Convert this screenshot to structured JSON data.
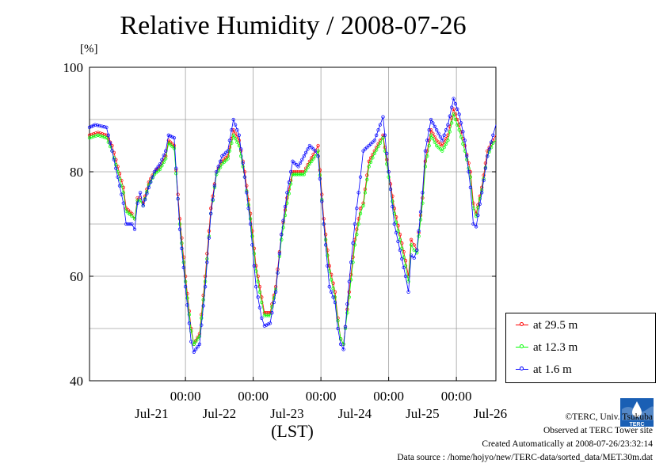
{
  "chart_data": {
    "type": "line",
    "title": "Relative Humidity / 2008-07-26",
    "ylabel": "[%]",
    "xlabel": "(LST)",
    "ylim": [
      40,
      100
    ],
    "yticks": [
      40,
      60,
      80,
      100
    ],
    "x_tick_time_labels": [
      "00:00",
      "00:00",
      "00:00",
      "00:00",
      "00:00"
    ],
    "x_tick_date_labels": [
      "Jul-21",
      "Jul-22",
      "Jul-23",
      "Jul-24",
      "Jul-25",
      "Jul-26"
    ],
    "grid": true,
    "legend_position": "outside-right-bottom",
    "time_unit": "hours",
    "x_range_hours": [
      0,
      144
    ],
    "series": [
      {
        "name": "at 29.5 m",
        "color": "#ff0000",
        "points": [
          [
            0,
            87
          ],
          [
            3,
            87.5
          ],
          [
            6,
            87
          ],
          [
            8,
            85
          ],
          [
            10,
            81
          ],
          [
            12,
            77
          ],
          [
            13,
            73
          ],
          [
            15,
            72
          ],
          [
            16,
            71
          ],
          [
            17,
            75
          ],
          [
            18,
            75
          ],
          [
            19,
            74
          ],
          [
            21,
            78
          ],
          [
            23,
            80
          ],
          [
            25,
            81
          ],
          [
            27,
            83
          ],
          [
            28,
            86
          ],
          [
            30,
            85
          ],
          [
            32,
            71
          ],
          [
            34,
            60
          ],
          [
            36,
            50
          ],
          [
            37,
            47
          ],
          [
            39,
            49
          ],
          [
            41,
            60
          ],
          [
            43,
            73
          ],
          [
            45,
            80
          ],
          [
            47,
            82
          ],
          [
            49,
            83
          ],
          [
            51,
            88
          ],
          [
            53,
            86
          ],
          [
            55,
            80
          ],
          [
            57,
            72
          ],
          [
            59,
            62
          ],
          [
            61,
            56
          ],
          [
            62,
            53
          ],
          [
            64,
            53
          ],
          [
            66,
            58
          ],
          [
            68,
            68
          ],
          [
            70,
            75
          ],
          [
            72,
            80
          ],
          [
            74,
            80
          ],
          [
            76,
            80
          ],
          [
            78,
            82
          ],
          [
            80,
            84
          ],
          [
            81,
            85
          ],
          [
            83,
            71
          ],
          [
            85,
            62
          ],
          [
            87,
            57
          ],
          [
            88,
            52
          ],
          [
            89,
            48
          ],
          [
            90,
            47
          ],
          [
            92,
            57
          ],
          [
            94,
            67
          ],
          [
            96,
            73
          ],
          [
            97,
            74
          ],
          [
            99,
            82
          ],
          [
            101,
            84
          ],
          [
            103,
            86
          ],
          [
            104,
            87
          ],
          [
            106,
            80
          ],
          [
            108,
            73
          ],
          [
            110,
            68
          ],
          [
            112,
            63
          ],
          [
            113,
            60
          ],
          [
            114,
            67
          ],
          [
            115,
            66
          ],
          [
            116,
            65
          ],
          [
            118,
            75
          ],
          [
            119,
            82
          ],
          [
            121,
            88
          ],
          [
            123,
            86
          ],
          [
            125,
            85
          ],
          [
            127,
            87
          ],
          [
            129,
            92
          ],
          [
            131,
            89
          ],
          [
            133,
            85
          ],
          [
            135,
            80
          ],
          [
            136,
            74
          ],
          [
            137,
            72
          ],
          [
            139,
            77
          ],
          [
            141,
            84
          ],
          [
            143,
            86
          ],
          [
            144,
            87
          ]
        ]
      },
      {
        "name": "at 12.3 m",
        "color": "#00ff00",
        "points": [
          [
            0,
            86.5
          ],
          [
            3,
            87
          ],
          [
            6,
            86.5
          ],
          [
            8,
            84
          ],
          [
            10,
            80
          ],
          [
            12,
            76
          ],
          [
            13,
            72.5
          ],
          [
            15,
            71.5
          ],
          [
            16,
            71
          ],
          [
            17,
            74.5
          ],
          [
            18,
            74.5
          ],
          [
            19,
            73.5
          ],
          [
            21,
            77.5
          ],
          [
            23,
            79.5
          ],
          [
            25,
            80.5
          ],
          [
            27,
            82.5
          ],
          [
            28,
            85.5
          ],
          [
            30,
            84.5
          ],
          [
            32,
            70
          ],
          [
            34,
            59
          ],
          [
            36,
            49.5
          ],
          [
            37,
            47
          ],
          [
            39,
            48.5
          ],
          [
            41,
            59
          ],
          [
            43,
            72
          ],
          [
            45,
            79.5
          ],
          [
            47,
            81.5
          ],
          [
            49,
            82.5
          ],
          [
            51,
            87
          ],
          [
            53,
            85
          ],
          [
            55,
            79
          ],
          [
            57,
            71
          ],
          [
            59,
            61
          ],
          [
            61,
            55
          ],
          [
            62,
            52.5
          ],
          [
            64,
            52.5
          ],
          [
            66,
            57.5
          ],
          [
            68,
            67
          ],
          [
            70,
            74
          ],
          [
            72,
            79.5
          ],
          [
            74,
            79.5
          ],
          [
            76,
            79.5
          ],
          [
            78,
            81.5
          ],
          [
            80,
            83
          ],
          [
            81,
            84
          ],
          [
            83,
            70
          ],
          [
            85,
            61
          ],
          [
            87,
            56
          ],
          [
            88,
            51.5
          ],
          [
            89,
            48
          ],
          [
            90,
            47
          ],
          [
            92,
            56
          ],
          [
            94,
            66
          ],
          [
            96,
            72
          ],
          [
            97,
            73.5
          ],
          [
            99,
            81
          ],
          [
            101,
            83.5
          ],
          [
            103,
            85.5
          ],
          [
            104,
            86.5
          ],
          [
            106,
            79
          ],
          [
            108,
            72
          ],
          [
            110,
            67
          ],
          [
            112,
            62
          ],
          [
            113,
            59
          ],
          [
            114,
            66
          ],
          [
            115,
            65
          ],
          [
            116,
            64.5
          ],
          [
            118,
            74
          ],
          [
            119,
            81
          ],
          [
            121,
            87
          ],
          [
            123,
            85
          ],
          [
            125,
            84
          ],
          [
            127,
            86
          ],
          [
            129,
            91
          ],
          [
            131,
            88
          ],
          [
            133,
            84
          ],
          [
            135,
            79
          ],
          [
            136,
            73
          ],
          [
            137,
            71.5
          ],
          [
            139,
            76.5
          ],
          [
            141,
            83
          ],
          [
            143,
            85.5
          ],
          [
            144,
            86
          ]
        ]
      },
      {
        "name": "at 1.6 m",
        "color": "#0000ff",
        "points": [
          [
            0,
            88.5
          ],
          [
            2,
            89
          ],
          [
            6,
            88.5
          ],
          [
            8,
            84
          ],
          [
            10,
            79
          ],
          [
            12,
            74
          ],
          [
            13,
            70
          ],
          [
            15,
            70
          ],
          [
            16,
            69
          ],
          [
            17,
            74
          ],
          [
            18,
            76
          ],
          [
            19,
            73.5
          ],
          [
            21,
            77
          ],
          [
            23,
            80
          ],
          [
            25,
            81.5
          ],
          [
            27,
            84
          ],
          [
            28,
            87
          ],
          [
            30,
            86.5
          ],
          [
            32,
            69
          ],
          [
            34,
            58
          ],
          [
            36,
            47.5
          ],
          [
            37,
            45.5
          ],
          [
            39,
            47
          ],
          [
            41,
            58
          ],
          [
            43,
            72
          ],
          [
            45,
            80
          ],
          [
            47,
            83
          ],
          [
            49,
            84
          ],
          [
            51,
            90
          ],
          [
            53,
            87
          ],
          [
            55,
            79
          ],
          [
            57,
            70
          ],
          [
            59,
            58
          ],
          [
            61,
            52
          ],
          [
            62,
            50.5
          ],
          [
            64,
            51
          ],
          [
            66,
            57
          ],
          [
            68,
            68
          ],
          [
            70,
            76
          ],
          [
            72,
            82
          ],
          [
            74,
            81
          ],
          [
            76,
            83
          ],
          [
            78,
            85
          ],
          [
            80,
            84
          ],
          [
            81,
            83
          ],
          [
            83,
            70
          ],
          [
            85,
            58
          ],
          [
            87,
            55
          ],
          [
            88,
            50
          ],
          [
            89,
            47
          ],
          [
            90,
            46
          ],
          [
            92,
            59
          ],
          [
            94,
            70
          ],
          [
            96,
            79
          ],
          [
            97,
            84
          ],
          [
            99,
            85
          ],
          [
            101,
            86
          ],
          [
            103,
            89
          ],
          [
            104,
            90.5
          ],
          [
            106,
            80
          ],
          [
            108,
            70
          ],
          [
            110,
            65
          ],
          [
            112,
            60
          ],
          [
            113,
            57
          ],
          [
            114,
            64
          ],
          [
            115,
            63.5
          ],
          [
            116,
            65
          ],
          [
            118,
            76
          ],
          [
            119,
            84
          ],
          [
            121,
            90
          ],
          [
            123,
            88
          ],
          [
            125,
            86
          ],
          [
            127,
            89
          ],
          [
            129,
            94
          ],
          [
            131,
            91
          ],
          [
            133,
            86
          ],
          [
            135,
            77
          ],
          [
            136,
            70
          ],
          [
            137,
            69.5
          ],
          [
            139,
            76
          ],
          [
            141,
            83
          ],
          [
            143,
            87
          ],
          [
            144,
            89
          ]
        ]
      }
    ]
  },
  "credits": {
    "copyright": "©TERC, Univ. Tsukuba",
    "site": "Observed at TERC Tower site",
    "created": "Created Automatically at 2008-07-26/23:32:14",
    "source": "Data source : /home/hojyo/new/TERC-data/sorted_data/MET.30m.dat"
  },
  "logo_text": "TERC"
}
